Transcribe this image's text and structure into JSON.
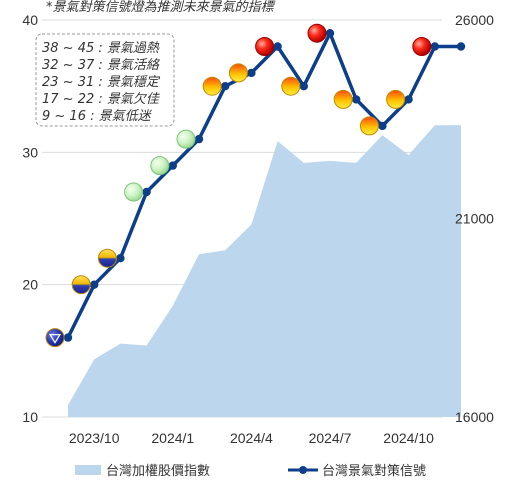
{
  "chart_data": {
    "type": "line",
    "note": "*景氣對策信號燈為推測未來景氣的指標",
    "x": [
      "2023/9",
      "2023/10",
      "2023/11",
      "2023/12",
      "2024/1",
      "2024/2",
      "2024/3",
      "2024/4",
      "2024/5",
      "2024/6",
      "2024/7",
      "2024/8",
      "2024/9",
      "2024/10",
      "2024/11",
      "2024/12"
    ],
    "x_ticks": [
      "2023/10",
      "2024/1",
      "2024/4",
      "2024/7",
      "2024/10"
    ],
    "ylim_left": [
      10,
      40
    ],
    "yticks_left": [
      "10",
      "20",
      "30",
      "40"
    ],
    "ylim_right": [
      16000,
      26000
    ],
    "yticks_right": [
      "16000",
      "21000",
      "26000"
    ],
    "series": [
      {
        "name": "台灣加權股價指數",
        "kind": "area",
        "axis": "right",
        "color": "#bcd6ee",
        "values": [
          16300,
          17450,
          17850,
          17800,
          18800,
          20100,
          20200,
          20850,
          22950,
          22400,
          22450,
          22400,
          23100,
          22600,
          23350,
          23350
        ]
      },
      {
        "name": "台灣景氣對策信號",
        "kind": "line",
        "axis": "left",
        "color": "#0d3e8a",
        "values": [
          16,
          20,
          22,
          27,
          29,
          31,
          35,
          36,
          38,
          35,
          39,
          34,
          32,
          34,
          38,
          38
        ]
      }
    ],
    "signal_lights": [
      {
        "month": "2023/9",
        "score": 16,
        "color": "blue"
      },
      {
        "month": "2023/10",
        "score": 20,
        "color": "yellow-blue"
      },
      {
        "month": "2023/11",
        "score": 22,
        "color": "yellow-blue"
      },
      {
        "month": "2023/12",
        "score": 27,
        "color": "green"
      },
      {
        "month": "2024/1",
        "score": 29,
        "color": "green"
      },
      {
        "month": "2024/2",
        "score": 31,
        "color": "green"
      },
      {
        "month": "2024/3",
        "score": 35,
        "color": "yellow-red"
      },
      {
        "month": "2024/4",
        "score": 36,
        "color": "yellow-red"
      },
      {
        "month": "2024/5",
        "score": 38,
        "color": "red"
      },
      {
        "month": "2024/6",
        "score": 35,
        "color": "yellow-red"
      },
      {
        "month": "2024/7",
        "score": 39,
        "color": "red"
      },
      {
        "month": "2024/8",
        "score": 34,
        "color": "yellow-red"
      },
      {
        "month": "2024/9",
        "score": 32,
        "color": "yellow-red"
      },
      {
        "month": "2024/10",
        "score": 34,
        "color": "yellow-red"
      },
      {
        "month": "2024/11",
        "score": 38,
        "color": "red"
      }
    ],
    "signal_ranges": [
      "38 ~ 45 : 景氣過熱",
      "32 ~ 37 : 景氣活絡",
      "23 ~ 31 : 景氣穩定",
      "17 ~ 22 : 景氣欠佳",
      "9 ~ 16 : 景氣低迷"
    ],
    "legend_position": "bottom",
    "grid": true,
    "colors": {
      "area": "#bcd6ee",
      "line": "#0d3e8a",
      "grid": "#dcdcdc",
      "red": "#e00000",
      "yellow": "#f6c400",
      "green": "#c8f0c0",
      "blue": "#1a2f9c"
    }
  }
}
